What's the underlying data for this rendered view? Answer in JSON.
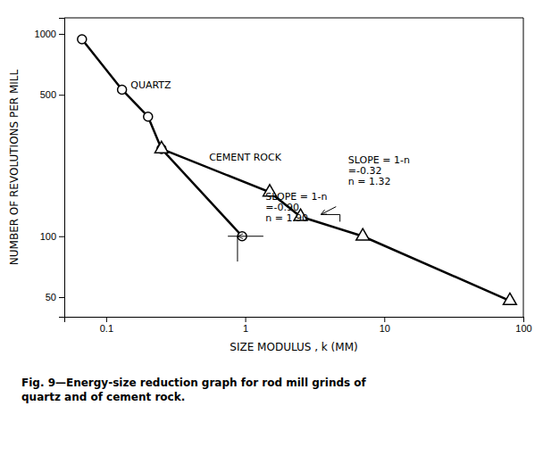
{
  "chart_data": {
    "type": "line",
    "log": true,
    "xlabel": "SIZE MODULUS , k (MM)",
    "ylabel": "NUMBER OF REVOLUTIONS PER MILL",
    "caption": "Fig. 9—Energy-size reduction graph for rod mill grinds of\nquartz and of cement rock.",
    "xlim": [
      0.05,
      100
    ],
    "ylim": [
      40,
      1200
    ],
    "xticks": [
      0.1,
      1,
      10,
      100
    ],
    "yticks": [
      50,
      100,
      500,
      1000
    ],
    "series": [
      {
        "x": [
          0.067,
          0.13,
          0.2,
          0.25,
          0.95
        ],
        "values": [
          940,
          530,
          390,
          270,
          100
        ],
        "color": "#000000",
        "marker": "circle",
        "line_style": "solid"
      },
      {
        "x": [
          0.25,
          1.5,
          2.5,
          7.0,
          80.0
        ],
        "values": [
          270,
          165,
          125,
          100,
          48
        ],
        "color": "#000000",
        "marker": "triangle",
        "line_style": "solid"
      }
    ],
    "annotations": [
      {
        "text": "QUARTZ",
        "x": 0.15,
        "y": 520
      },
      {
        "text": "CEMENT ROCK",
        "x": 0.55,
        "y": 230
      },
      {
        "text": "SLOPE = 1-n\n=-0.90\nn = 1.90",
        "x": 1.4,
        "y": 115,
        "arrow_from": [
          1.35,
          100
        ],
        "arrow_to": [
          0.88,
          100
        ],
        "bracket_x": [
          0.75,
          0.88,
          0.88
        ],
        "bracket_y": [
          100,
          100,
          75
        ]
      },
      {
        "text": "SLOPE = 1-n\n=-0.32\nn = 1.32",
        "x": 5.5,
        "y": 175,
        "arrow_from": [
          4.5,
          140
        ],
        "arrow_to": [
          3.5,
          128
        ],
        "bracket_x": [
          3.5,
          4.8,
          4.8
        ],
        "bracket_y": [
          128,
          128,
          118
        ]
      }
    ]
  }
}
